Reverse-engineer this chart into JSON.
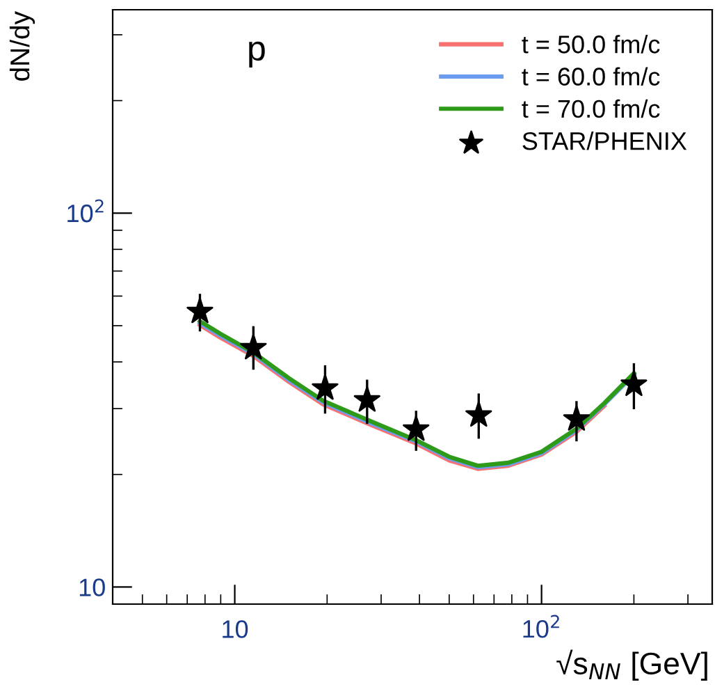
{
  "chart_data": {
    "type": "line",
    "xlabel": "√s$_{NN}$ [GeV]",
    "ylabel": "dN/dy",
    "log": "xy",
    "xlim": [
      4,
      360
    ],
    "ylim": [
      9,
      350
    ],
    "xticks": [
      10,
      {
        "value": 100,
        "label": "10$^{2}$"
      }
    ],
    "yticks": [
      10,
      {
        "value": 100,
        "label": "10$^{2}$"
      }
    ],
    "annotations": [
      "p"
    ],
    "legend": "top right",
    "grid": false,
    "series": [
      {
        "name": "t = 50.0 fm/c",
        "color": "#f87171",
        "x": [
          7.7,
          9,
          11.5,
          15,
          19.4,
          27.6,
          39,
          50,
          62,
          78,
          100,
          130,
          160
        ],
        "values": [
          50.2,
          46.4,
          41.5,
          35.4,
          30.8,
          27.2,
          24.2,
          21.8,
          20.7,
          21.1,
          22.6,
          26.0,
          30.5
        ]
      },
      {
        "name": "t = 60.0 fm/c",
        "color": "#6b9cf0",
        "x": [
          7.7,
          9,
          11.5,
          15,
          19.4,
          27.6,
          39,
          50,
          62,
          78,
          100,
          130,
          160,
          200
        ],
        "values": [
          50.8,
          47.0,
          42.0,
          35.8,
          31.2,
          27.5,
          24.5,
          22.1,
          20.9,
          21.3,
          22.8,
          26.3,
          30.8,
          37.0
        ]
      },
      {
        "name": "t = 70.0 fm/c",
        "color": "#2e9a1a",
        "x": [
          7.7,
          9,
          11.5,
          15,
          19.4,
          27.6,
          39,
          50,
          62,
          78,
          100,
          130,
          160,
          200
        ],
        "values": [
          51.4,
          47.5,
          42.4,
          36.2,
          31.5,
          27.8,
          24.7,
          22.3,
          21.1,
          21.5,
          23.0,
          26.5,
          31.0,
          37.3
        ]
      },
      {
        "name": "STAR/PHENIX",
        "color": "#000000",
        "type": "scatter",
        "marker": "star",
        "x": [
          7.7,
          11.5,
          19.7,
          27,
          39,
          62.4,
          130,
          200
        ],
        "values": [
          54.5,
          43.6,
          34,
          31.6,
          26.4,
          28.8,
          28.1,
          34.8
        ],
        "errors": [
          [
            48.6,
            60.4
          ],
          [
            38.4,
            49.5
          ],
          [
            29.3,
            38.9
          ],
          [
            27.5,
            35.6
          ],
          [
            23.3,
            29.4
          ],
          [
            25.1,
            32.7
          ],
          [
            24.7,
            31.2
          ],
          [
            30.1,
            39.4
          ]
        ]
      }
    ]
  }
}
